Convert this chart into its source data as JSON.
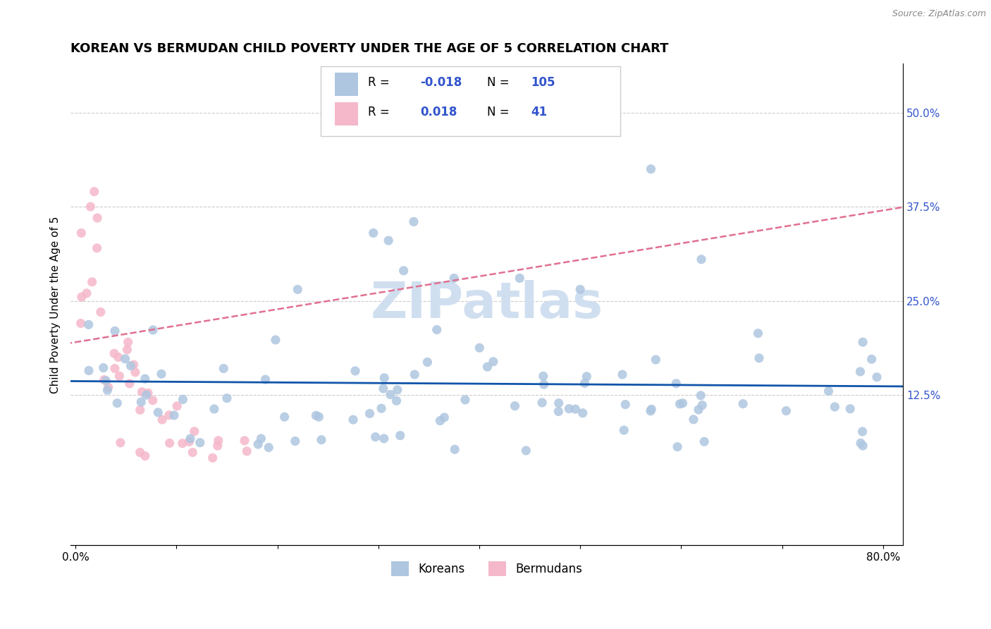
{
  "title": "KOREAN VS BERMUDAN CHILD POVERTY UNDER THE AGE OF 5 CORRELATION CHART",
  "source": "Source: ZipAtlas.com",
  "ylabel": "Child Poverty Under the Age of 5",
  "xlim": [
    -0.005,
    0.82
  ],
  "ylim": [
    -0.075,
    0.565
  ],
  "xtick_positions": [
    0.0,
    0.1,
    0.2,
    0.3,
    0.4,
    0.5,
    0.6,
    0.7,
    0.8
  ],
  "xticklabels": [
    "0.0%",
    "",
    "",
    "",
    "",
    "",
    "",
    "",
    "80.0%"
  ],
  "yticks_right": [
    0.125,
    0.25,
    0.375,
    0.5
  ],
  "ytick_labels_right": [
    "12.5%",
    "25.0%",
    "37.5%",
    "50.0%"
  ],
  "korean_color": "#aec6e0",
  "bermudan_color": "#f5b8ca",
  "korean_line_color": "#1155aa",
  "bermudan_line_color": "#e07090",
  "legend_text_color": "#3355cc",
  "watermark_color": "#d0dff0",
  "title_fontsize": 13,
  "axis_fontsize": 11,
  "tick_fontsize": 11
}
